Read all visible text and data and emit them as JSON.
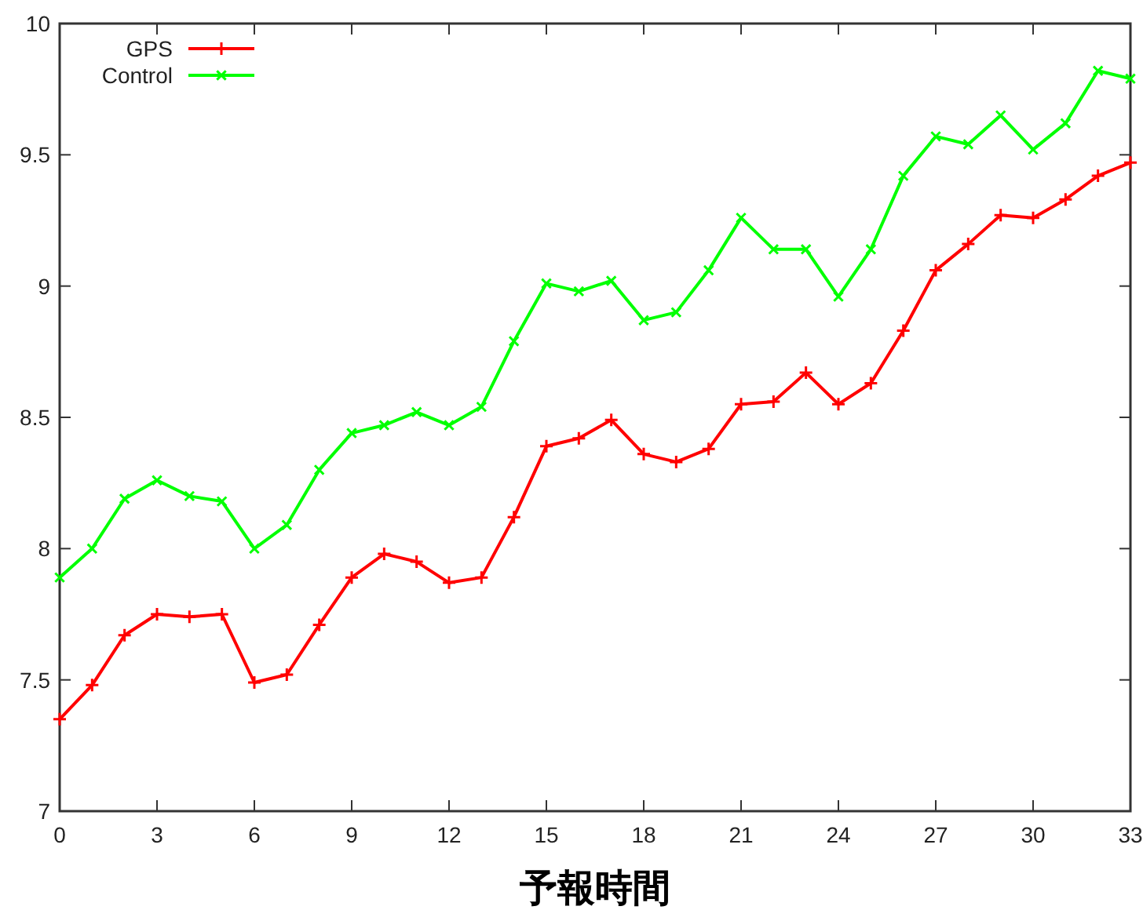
{
  "chart_data": {
    "type": "line",
    "xlabel": "予報時間",
    "x": [
      0,
      1,
      2,
      3,
      4,
      5,
      6,
      7,
      8,
      9,
      10,
      11,
      12,
      13,
      14,
      15,
      16,
      17,
      18,
      19,
      20,
      21,
      22,
      23,
      24,
      25,
      26,
      27,
      28,
      29,
      30,
      31,
      32,
      33
    ],
    "series": [
      {
        "name": "GPS",
        "color": "#ff0000",
        "values": [
          7.35,
          7.48,
          7.67,
          7.75,
          7.74,
          7.75,
          7.49,
          7.52,
          7.71,
          7.89,
          7.98,
          7.95,
          7.87,
          7.89,
          8.12,
          8.39,
          8.42,
          8.49,
          8.36,
          8.33,
          8.38,
          8.55,
          8.56,
          8.67,
          8.55,
          8.63,
          8.83,
          9.06,
          9.16,
          9.27,
          9.26,
          9.33,
          9.42,
          9.47
        ]
      },
      {
        "name": "Control",
        "color": "#00ff00",
        "values": [
          7.89,
          8.0,
          8.19,
          8.26,
          8.2,
          8.18,
          8.0,
          8.09,
          8.3,
          8.44,
          8.47,
          8.52,
          8.47,
          8.54,
          8.79,
          9.01,
          8.98,
          9.02,
          8.87,
          8.9,
          9.06,
          9.26,
          9.14,
          9.14,
          8.96,
          9.14,
          9.42,
          9.57,
          9.54,
          9.65,
          9.52,
          9.62,
          9.82,
          9.79
        ]
      }
    ],
    "xlim": [
      0,
      33
    ],
    "xticks": [
      0,
      3,
      6,
      9,
      12,
      15,
      18,
      21,
      24,
      27,
      30,
      33
    ],
    "ylim": [
      7,
      10
    ],
    "yticks": [
      7,
      7.5,
      8,
      8.5,
      9,
      9.5,
      10
    ],
    "grid": false,
    "legend": "top left",
    "marker": "cross",
    "line_style": "solid"
  }
}
